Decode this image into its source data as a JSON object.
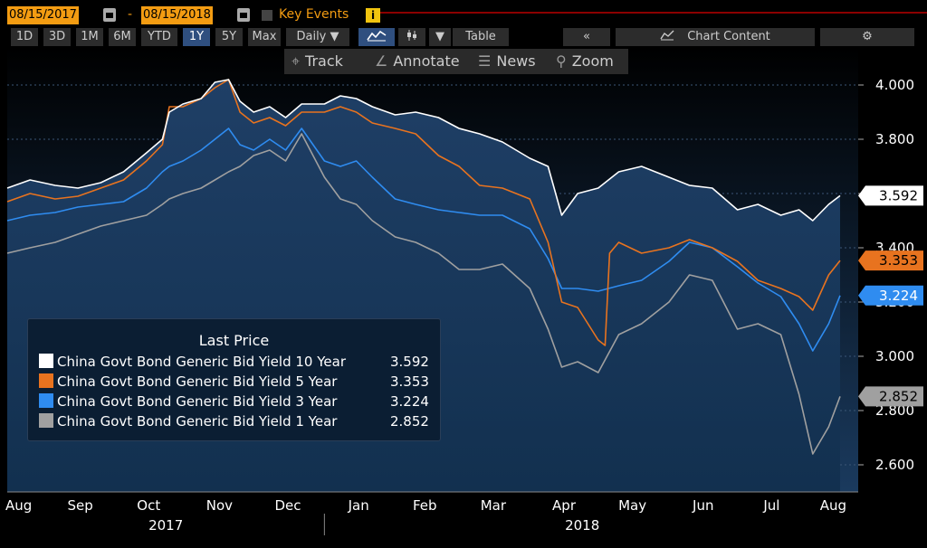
{
  "header": {
    "start_date": "08/15/2017",
    "end_date": "08/15/2018",
    "dash": "-",
    "key_events": "Key Events",
    "info": "i"
  },
  "toolbar": {
    "ranges": [
      "1D",
      "3D",
      "1M",
      "6M",
      "YTD",
      "1Y",
      "5Y",
      "Max"
    ],
    "active_range": "1Y",
    "frequency": "Daily ▼",
    "chart_icon": "line-chart-icon",
    "table": "Table",
    "collapse": "«",
    "chart_content": "Chart Content",
    "track": "Track",
    "annotate": "Annotate",
    "news": "News",
    "zoom": "Zoom"
  },
  "colors": {
    "ten_year": "#ffffff",
    "five_year": "#e8731f",
    "three_year": "#2f8cf0",
    "one_year": "#a0a0a0",
    "plot_top": "#000000",
    "plot_bottom": "#1a3a5e",
    "accent": "#f39c12"
  },
  "chart_data": {
    "type": "line",
    "legend_title": "Last Price",
    "y_ticks": [
      "4.000",
      "3.800",
      "3.600",
      "3.400",
      "3.200",
      "3.000",
      "2.800",
      "2.600"
    ],
    "ylim": [
      2.5,
      4.14
    ],
    "x_months": [
      "Aug",
      "Sep",
      "Oct",
      "Nov",
      "Dec",
      "Jan",
      "Feb",
      "Mar",
      "Apr",
      "May",
      "Jun",
      "Jul",
      "Aug"
    ],
    "x_years": [
      "2017",
      "2018"
    ],
    "x_range": [
      "2017-08-15",
      "2018-08-15"
    ],
    "series": [
      {
        "name": "China Govt Bond Generic Bid Yield 10 Year",
        "color": "#ffffff",
        "last": 3.592,
        "last_label": "3.592",
        "points": [
          [
            "2017-08-15",
            3.62
          ],
          [
            "2017-08-25",
            3.65
          ],
          [
            "2017-09-05",
            3.63
          ],
          [
            "2017-09-15",
            3.62
          ],
          [
            "2017-09-25",
            3.64
          ],
          [
            "2017-10-05",
            3.68
          ],
          [
            "2017-10-15",
            3.75
          ],
          [
            "2017-10-22",
            3.8
          ],
          [
            "2017-10-25",
            3.9
          ],
          [
            "2017-10-31",
            3.93
          ],
          [
            "2017-11-08",
            3.95
          ],
          [
            "2017-11-14",
            4.01
          ],
          [
            "2017-11-20",
            4.02
          ],
          [
            "2017-11-25",
            3.94
          ],
          [
            "2017-12-01",
            3.9
          ],
          [
            "2017-12-08",
            3.92
          ],
          [
            "2017-12-15",
            3.88
          ],
          [
            "2017-12-22",
            3.93
          ],
          [
            "2018-01-01",
            3.93
          ],
          [
            "2018-01-08",
            3.96
          ],
          [
            "2018-01-15",
            3.95
          ],
          [
            "2018-01-22",
            3.92
          ],
          [
            "2018-02-01",
            3.89
          ],
          [
            "2018-02-10",
            3.9
          ],
          [
            "2018-02-20",
            3.88
          ],
          [
            "2018-03-01",
            3.84
          ],
          [
            "2018-03-10",
            3.82
          ],
          [
            "2018-03-20",
            3.79
          ],
          [
            "2018-04-01",
            3.73
          ],
          [
            "2018-04-09",
            3.7
          ],
          [
            "2018-04-15",
            3.52
          ],
          [
            "2018-04-22",
            3.6
          ],
          [
            "2018-05-01",
            3.62
          ],
          [
            "2018-05-10",
            3.68
          ],
          [
            "2018-05-20",
            3.7
          ],
          [
            "2018-06-01",
            3.66
          ],
          [
            "2018-06-10",
            3.63
          ],
          [
            "2018-06-20",
            3.62
          ],
          [
            "2018-07-01",
            3.54
          ],
          [
            "2018-07-10",
            3.56
          ],
          [
            "2018-07-20",
            3.52
          ],
          [
            "2018-07-28",
            3.54
          ],
          [
            "2018-08-03",
            3.5
          ],
          [
            "2018-08-10",
            3.56
          ],
          [
            "2018-08-15",
            3.592
          ]
        ]
      },
      {
        "name": "China Govt Bond Generic Bid Yield 5 Year",
        "color": "#e8731f",
        "last": 3.353,
        "last_label": "3.353",
        "points": [
          [
            "2017-08-15",
            3.57
          ],
          [
            "2017-08-25",
            3.6
          ],
          [
            "2017-09-05",
            3.58
          ],
          [
            "2017-09-15",
            3.59
          ],
          [
            "2017-09-25",
            3.62
          ],
          [
            "2017-10-05",
            3.65
          ],
          [
            "2017-10-15",
            3.72
          ],
          [
            "2017-10-22",
            3.78
          ],
          [
            "2017-10-25",
            3.92
          ],
          [
            "2017-10-31",
            3.92
          ],
          [
            "2017-11-08",
            3.95
          ],
          [
            "2017-11-14",
            3.99
          ],
          [
            "2017-11-20",
            4.02
          ],
          [
            "2017-11-25",
            3.9
          ],
          [
            "2017-12-01",
            3.86
          ],
          [
            "2017-12-08",
            3.88
          ],
          [
            "2017-12-15",
            3.85
          ],
          [
            "2017-12-22",
            3.9
          ],
          [
            "2018-01-01",
            3.9
          ],
          [
            "2018-01-08",
            3.92
          ],
          [
            "2018-01-15",
            3.9
          ],
          [
            "2018-01-22",
            3.86
          ],
          [
            "2018-02-01",
            3.84
          ],
          [
            "2018-02-10",
            3.82
          ],
          [
            "2018-02-20",
            3.74
          ],
          [
            "2018-03-01",
            3.7
          ],
          [
            "2018-03-10",
            3.63
          ],
          [
            "2018-03-20",
            3.62
          ],
          [
            "2018-04-01",
            3.58
          ],
          [
            "2018-04-09",
            3.42
          ],
          [
            "2018-04-15",
            3.2
          ],
          [
            "2018-04-22",
            3.18
          ],
          [
            "2018-05-01",
            3.06
          ],
          [
            "2018-05-04",
            3.04
          ],
          [
            "2018-05-06",
            3.38
          ],
          [
            "2018-05-10",
            3.42
          ],
          [
            "2018-05-20",
            3.38
          ],
          [
            "2018-06-01",
            3.4
          ],
          [
            "2018-06-10",
            3.43
          ],
          [
            "2018-06-20",
            3.4
          ],
          [
            "2018-07-01",
            3.35
          ],
          [
            "2018-07-10",
            3.28
          ],
          [
            "2018-07-20",
            3.25
          ],
          [
            "2018-07-28",
            3.22
          ],
          [
            "2018-08-03",
            3.17
          ],
          [
            "2018-08-10",
            3.3
          ],
          [
            "2018-08-15",
            3.353
          ]
        ]
      },
      {
        "name": "China Govt Bond Generic Bid Yield 3 Year",
        "color": "#2f8cf0",
        "last": 3.224,
        "last_label": "3.224",
        "points": [
          [
            "2017-08-15",
            3.5
          ],
          [
            "2017-08-25",
            3.52
          ],
          [
            "2017-09-05",
            3.53
          ],
          [
            "2017-09-15",
            3.55
          ],
          [
            "2017-09-25",
            3.56
          ],
          [
            "2017-10-05",
            3.57
          ],
          [
            "2017-10-15",
            3.62
          ],
          [
            "2017-10-22",
            3.68
          ],
          [
            "2017-10-25",
            3.7
          ],
          [
            "2017-10-31",
            3.72
          ],
          [
            "2017-11-08",
            3.76
          ],
          [
            "2017-11-14",
            3.8
          ],
          [
            "2017-11-20",
            3.84
          ],
          [
            "2017-11-25",
            3.78
          ],
          [
            "2017-12-01",
            3.76
          ],
          [
            "2017-12-08",
            3.8
          ],
          [
            "2017-12-15",
            3.76
          ],
          [
            "2017-12-22",
            3.84
          ],
          [
            "2018-01-01",
            3.72
          ],
          [
            "2018-01-08",
            3.7
          ],
          [
            "2018-01-15",
            3.72
          ],
          [
            "2018-01-22",
            3.66
          ],
          [
            "2018-02-01",
            3.58
          ],
          [
            "2018-02-10",
            3.56
          ],
          [
            "2018-02-20",
            3.54
          ],
          [
            "2018-03-01",
            3.53
          ],
          [
            "2018-03-10",
            3.52
          ],
          [
            "2018-03-20",
            3.52
          ],
          [
            "2018-04-01",
            3.47
          ],
          [
            "2018-04-09",
            3.36
          ],
          [
            "2018-04-15",
            3.25
          ],
          [
            "2018-04-22",
            3.25
          ],
          [
            "2018-05-01",
            3.24
          ],
          [
            "2018-05-10",
            3.26
          ],
          [
            "2018-05-20",
            3.28
          ],
          [
            "2018-06-01",
            3.35
          ],
          [
            "2018-06-10",
            3.42
          ],
          [
            "2018-06-20",
            3.4
          ],
          [
            "2018-07-01",
            3.33
          ],
          [
            "2018-07-10",
            3.27
          ],
          [
            "2018-07-20",
            3.22
          ],
          [
            "2018-07-28",
            3.12
          ],
          [
            "2018-08-03",
            3.02
          ],
          [
            "2018-08-10",
            3.12
          ],
          [
            "2018-08-15",
            3.224
          ]
        ]
      },
      {
        "name": "China Govt Bond Generic Bid Yield 1 Year",
        "color": "#a0a0a0",
        "last": 2.852,
        "last_label": "2.852",
        "points": [
          [
            "2017-08-15",
            3.38
          ],
          [
            "2017-08-25",
            3.4
          ],
          [
            "2017-09-05",
            3.42
          ],
          [
            "2017-09-15",
            3.45
          ],
          [
            "2017-09-25",
            3.48
          ],
          [
            "2017-10-05",
            3.5
          ],
          [
            "2017-10-15",
            3.52
          ],
          [
            "2017-10-22",
            3.56
          ],
          [
            "2017-10-25",
            3.58
          ],
          [
            "2017-10-31",
            3.6
          ],
          [
            "2017-11-08",
            3.62
          ],
          [
            "2017-11-14",
            3.65
          ],
          [
            "2017-11-20",
            3.68
          ],
          [
            "2017-11-25",
            3.7
          ],
          [
            "2017-12-01",
            3.74
          ],
          [
            "2017-12-08",
            3.76
          ],
          [
            "2017-12-15",
            3.72
          ],
          [
            "2017-12-22",
            3.82
          ],
          [
            "2018-01-01",
            3.66
          ],
          [
            "2018-01-08",
            3.58
          ],
          [
            "2018-01-15",
            3.56
          ],
          [
            "2018-01-22",
            3.5
          ],
          [
            "2018-02-01",
            3.44
          ],
          [
            "2018-02-10",
            3.42
          ],
          [
            "2018-02-20",
            3.38
          ],
          [
            "2018-03-01",
            3.32
          ],
          [
            "2018-03-10",
            3.32
          ],
          [
            "2018-03-20",
            3.34
          ],
          [
            "2018-04-01",
            3.25
          ],
          [
            "2018-04-09",
            3.1
          ],
          [
            "2018-04-15",
            2.96
          ],
          [
            "2018-04-22",
            2.98
          ],
          [
            "2018-05-01",
            2.94
          ],
          [
            "2018-05-10",
            3.08
          ],
          [
            "2018-05-20",
            3.12
          ],
          [
            "2018-06-01",
            3.2
          ],
          [
            "2018-06-10",
            3.3
          ],
          [
            "2018-06-20",
            3.28
          ],
          [
            "2018-07-01",
            3.1
          ],
          [
            "2018-07-10",
            3.12
          ],
          [
            "2018-07-20",
            3.08
          ],
          [
            "2018-07-28",
            2.86
          ],
          [
            "2018-08-03",
            2.64
          ],
          [
            "2018-08-10",
            2.74
          ],
          [
            "2018-08-15",
            2.852
          ]
        ]
      }
    ]
  }
}
